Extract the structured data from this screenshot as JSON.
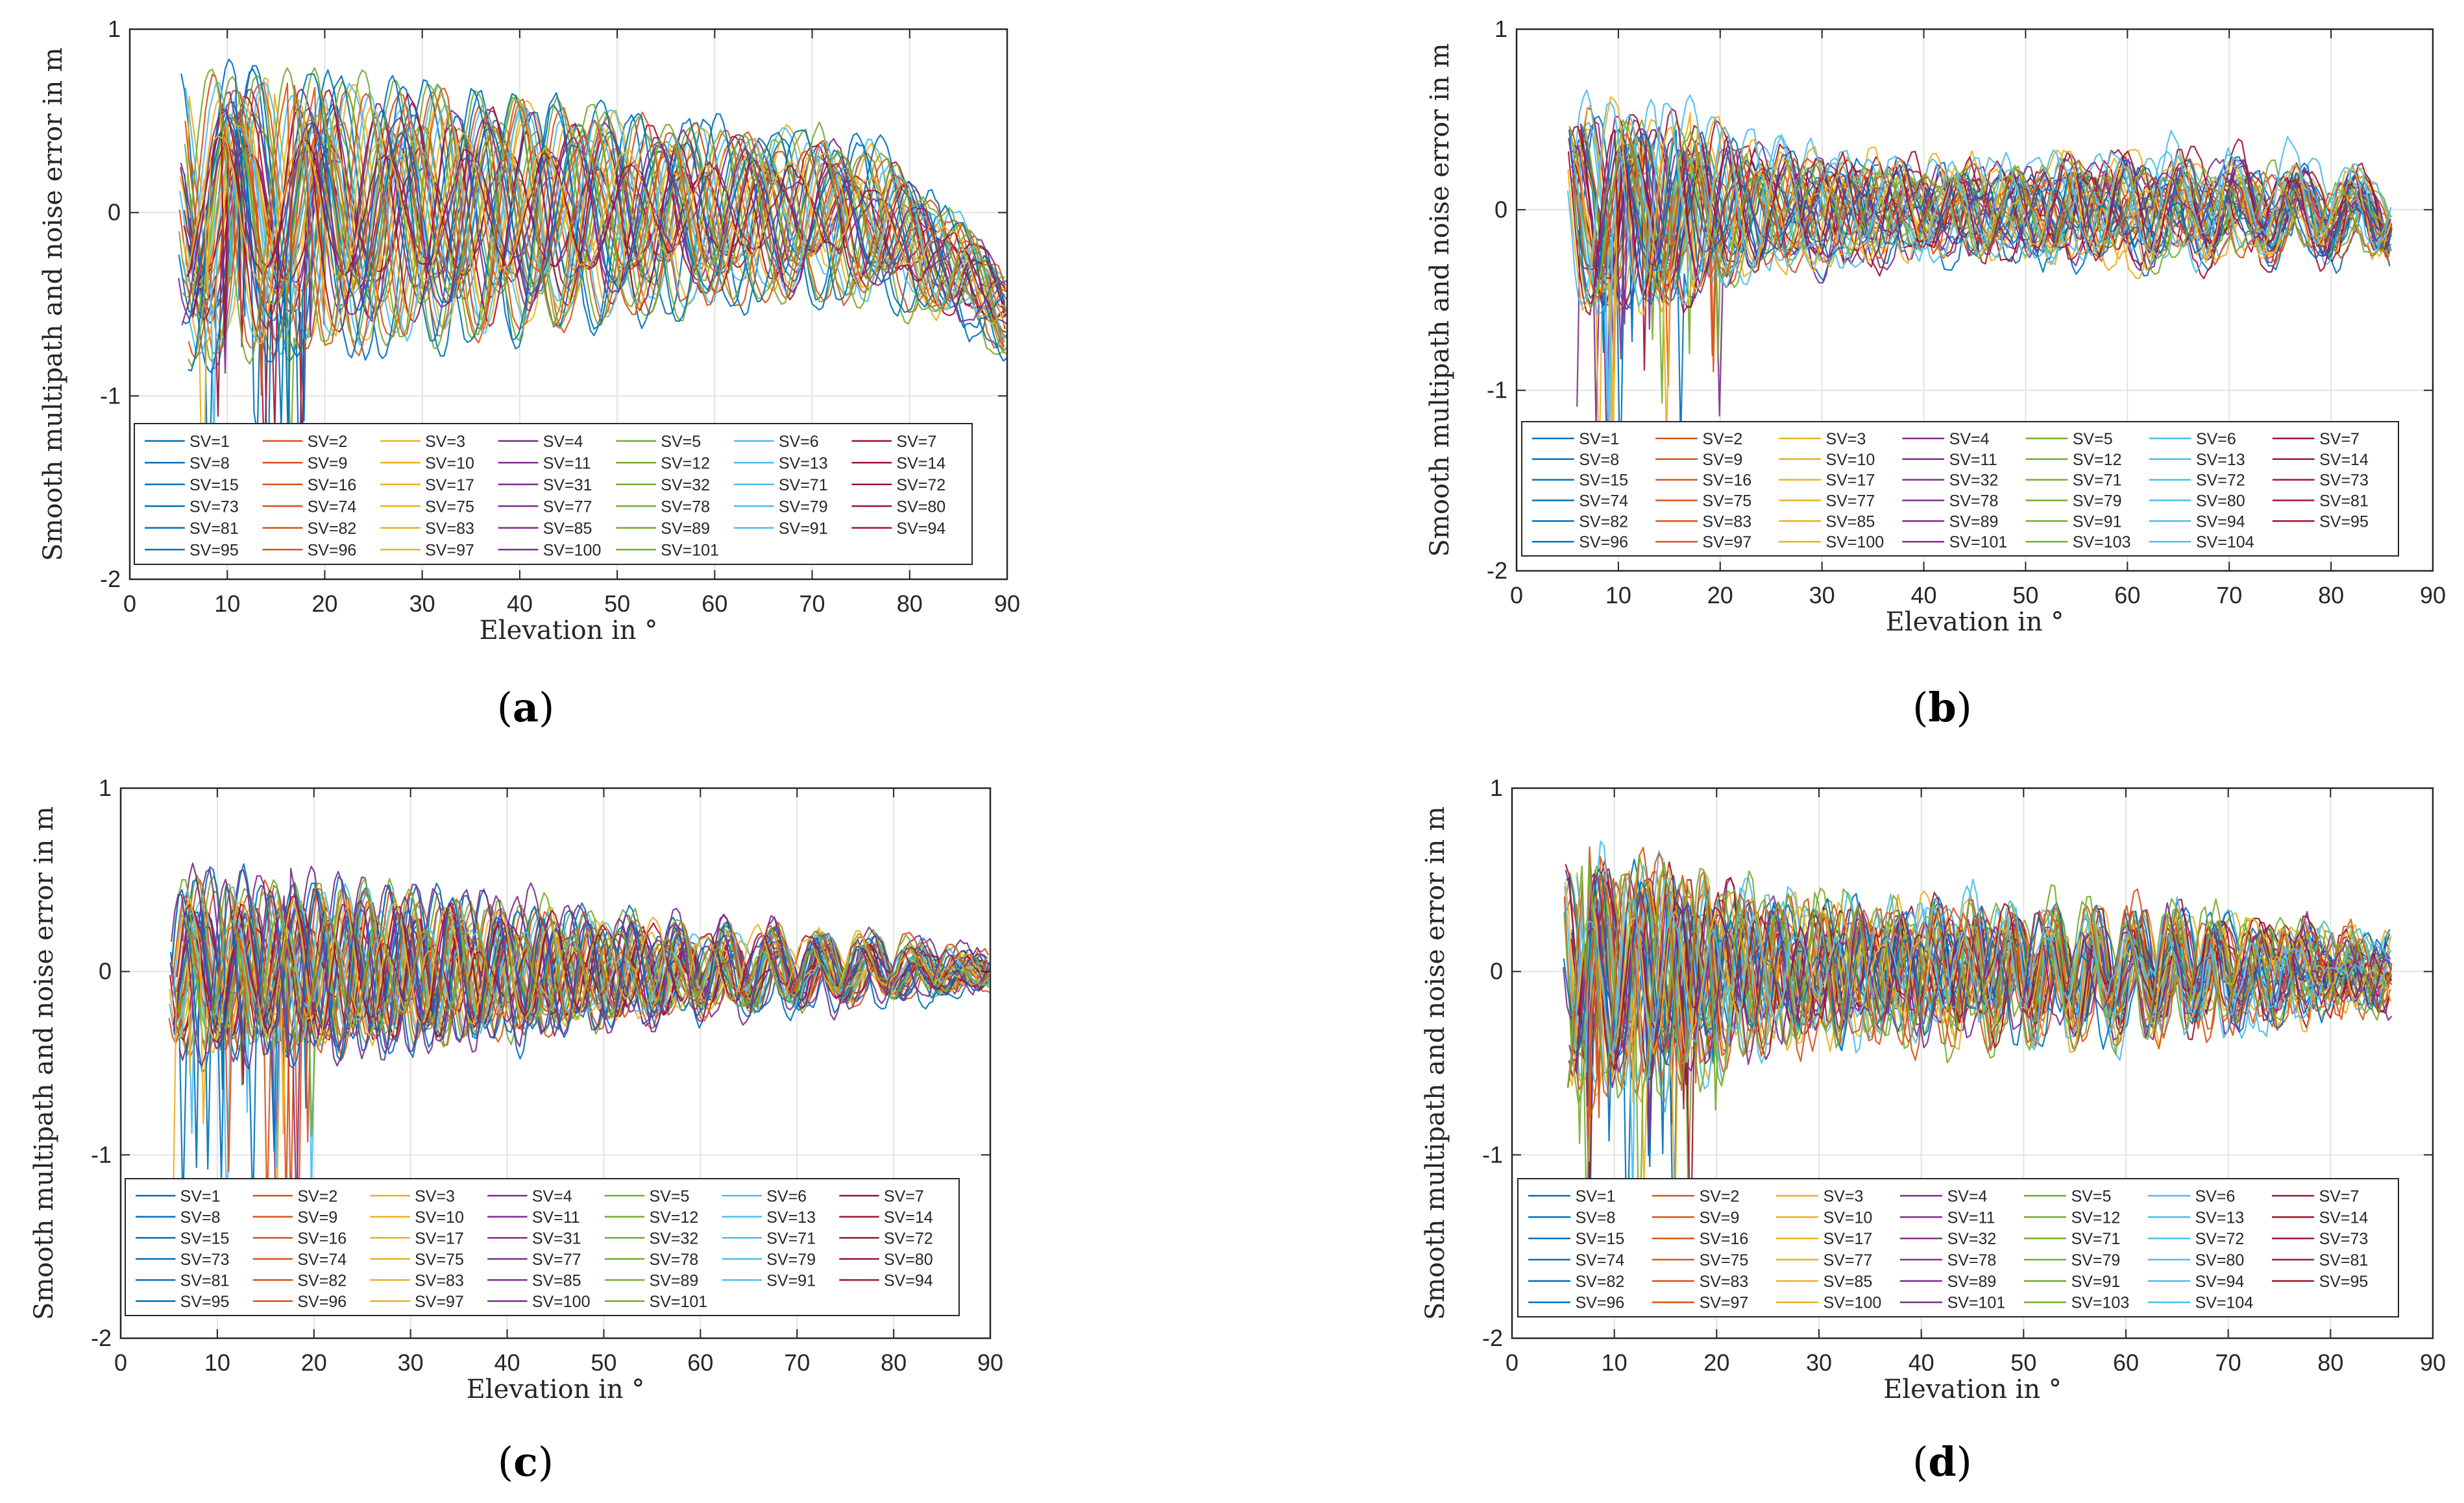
{
  "palette": [
    "#0072bd",
    "#d95319",
    "#edb120",
    "#7e2f8e",
    "#77ac30",
    "#4dbeee",
    "#a2142f"
  ],
  "chart_data": [
    {
      "type": "line",
      "caption": "a",
      "xlabel": "Elevation in °",
      "ylabel": "Smooth multipath and noise error in m",
      "xlim": [
        0,
        90
      ],
      "ylim": [
        -2,
        1
      ],
      "x_ticks": [
        "0",
        "10",
        "20",
        "30",
        "40",
        "50",
        "60",
        "70",
        "80",
        "90"
      ],
      "y_ticks": [
        "-2",
        "-1",
        "0",
        "1"
      ],
      "grid": true,
      "x_range": [
        5,
        90
      ],
      "envelope": {
        "x": [
          5,
          20,
          40,
          60,
          75,
          90
        ],
        "amp": [
          0.75,
          0.7,
          0.6,
          0.45,
          0.4,
          0.2
        ]
      },
      "oscillation_period": 8.5,
      "noise": 0.06,
      "end_drift": -0.55,
      "legend_location": "lower-left inside",
      "legend_columns": 7,
      "series": [
        "SV=1",
        "SV=2",
        "SV=3",
        "SV=4",
        "SV=5",
        "SV=6",
        "SV=7",
        "SV=8",
        "SV=9",
        "SV=10",
        "SV=11",
        "SV=12",
        "SV=13",
        "SV=14",
        "SV=15",
        "SV=16",
        "SV=17",
        "SV=31",
        "SV=32",
        "SV=71",
        "SV=72",
        "SV=73",
        "SV=74",
        "SV=75",
        "SV=77",
        "SV=78",
        "SV=79",
        "SV=80",
        "SV=81",
        "SV=82",
        "SV=83",
        "SV=85",
        "SV=89",
        "SV=91",
        "SV=94",
        "SV=95",
        "SV=96",
        "SV=97",
        "SV=100",
        "SV=101"
      ]
    },
    {
      "type": "line",
      "caption": "b",
      "xlabel": "Elevation in °",
      "ylabel": "Smooth multipath and noise error in m",
      "xlim": [
        0,
        90
      ],
      "ylim": [
        -2,
        1
      ],
      "x_ticks": [
        "0",
        "10",
        "20",
        "30",
        "40",
        "50",
        "60",
        "70",
        "80",
        "90"
      ],
      "y_ticks": [
        "-2",
        "-1",
        "0",
        "1"
      ],
      "grid": true,
      "x_range": [
        5,
        86
      ],
      "envelope": {
        "x": [
          5,
          15,
          25,
          40,
          60,
          86
        ],
        "amp": [
          0.55,
          0.5,
          0.3,
          0.22,
          0.25,
          0.2
        ]
      },
      "oscillation_period": 6,
      "noise": 0.1,
      "end_drift": -0.1,
      "legend_location": "lower-left inside",
      "legend_columns": 7,
      "series": [
        "SV=1",
        "SV=2",
        "SV=3",
        "SV=4",
        "SV=5",
        "SV=6",
        "SV=7",
        "SV=8",
        "SV=9",
        "SV=10",
        "SV=11",
        "SV=12",
        "SV=13",
        "SV=14",
        "SV=15",
        "SV=16",
        "SV=17",
        "SV=32",
        "SV=71",
        "SV=72",
        "SV=73",
        "SV=74",
        "SV=75",
        "SV=77",
        "SV=78",
        "SV=79",
        "SV=80",
        "SV=81",
        "SV=82",
        "SV=83",
        "SV=85",
        "SV=89",
        "SV=91",
        "SV=94",
        "SV=95",
        "SV=96",
        "SV=97",
        "SV=100",
        "SV=101",
        "SV=103",
        "SV=104"
      ]
    },
    {
      "type": "line",
      "caption": "c",
      "xlabel": "Elevation in °",
      "ylabel": "Smooth multipath and noise error in m",
      "xlim": [
        0,
        90
      ],
      "ylim": [
        -2,
        1
      ],
      "x_ticks": [
        "0",
        "10",
        "20",
        "30",
        "40",
        "50",
        "60",
        "70",
        "80",
        "90"
      ],
      "y_ticks": [
        "-2",
        "-1",
        "0",
        "1"
      ],
      "grid": true,
      "x_range": [
        5,
        90
      ],
      "envelope": {
        "x": [
          5,
          20,
          40,
          60,
          75,
          90
        ],
        "amp": [
          0.45,
          0.45,
          0.35,
          0.22,
          0.18,
          0.06
        ]
      },
      "oscillation_period": 5,
      "noise": 0.06,
      "end_drift": 0,
      "legend_location": "lower-left inside",
      "legend_columns": 7,
      "series": [
        "SV=1",
        "SV=2",
        "SV=3",
        "SV=4",
        "SV=5",
        "SV=6",
        "SV=7",
        "SV=8",
        "SV=9",
        "SV=10",
        "SV=11",
        "SV=12",
        "SV=13",
        "SV=14",
        "SV=15",
        "SV=16",
        "SV=17",
        "SV=31",
        "SV=32",
        "SV=71",
        "SV=72",
        "SV=73",
        "SV=74",
        "SV=75",
        "SV=77",
        "SV=78",
        "SV=79",
        "SV=80",
        "SV=81",
        "SV=82",
        "SV=83",
        "SV=85",
        "SV=89",
        "SV=91",
        "SV=94",
        "SV=95",
        "SV=96",
        "SV=97",
        "SV=100",
        "SV=101"
      ]
    },
    {
      "type": "line",
      "caption": "d",
      "xlabel": "Elevation in °",
      "ylabel": "Smooth multipath and noise error in m",
      "xlim": [
        0,
        90
      ],
      "ylim": [
        -2,
        1
      ],
      "x_ticks": [
        "0",
        "10",
        "20",
        "30",
        "40",
        "50",
        "60",
        "70",
        "80",
        "90"
      ],
      "y_ticks": [
        "-2",
        "-1",
        "0",
        "1"
      ],
      "grid": true,
      "x_range": [
        5,
        86
      ],
      "envelope": {
        "x": [
          5,
          15,
          25,
          40,
          60,
          86
        ],
        "amp": [
          0.6,
          0.55,
          0.35,
          0.3,
          0.3,
          0.12
        ]
      },
      "oscillation_period": 4,
      "noise": 0.14,
      "end_drift": 0,
      "legend_location": "lower-left inside",
      "legend_columns": 7,
      "series": [
        "SV=1",
        "SV=2",
        "SV=3",
        "SV=4",
        "SV=5",
        "SV=6",
        "SV=7",
        "SV=8",
        "SV=9",
        "SV=10",
        "SV=11",
        "SV=12",
        "SV=13",
        "SV=14",
        "SV=15",
        "SV=16",
        "SV=17",
        "SV=32",
        "SV=71",
        "SV=72",
        "SV=73",
        "SV=74",
        "SV=75",
        "SV=77",
        "SV=78",
        "SV=79",
        "SV=80",
        "SV=81",
        "SV=82",
        "SV=83",
        "SV=85",
        "SV=89",
        "SV=91",
        "SV=94",
        "SV=95",
        "SV=96",
        "SV=97",
        "SV=100",
        "SV=101",
        "SV=103",
        "SV=104"
      ]
    }
  ]
}
